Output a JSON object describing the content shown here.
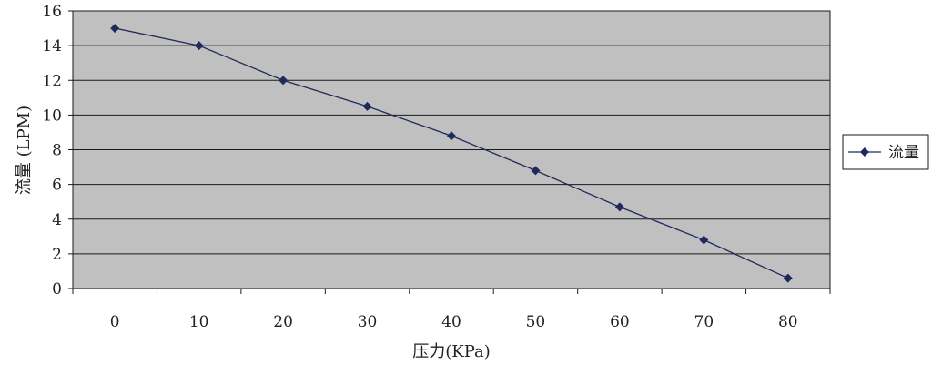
{
  "chart_data": {
    "type": "line",
    "title": "",
    "xlabel": "压力(KPa)",
    "ylabel": "流量 (LPM)",
    "categories": [
      "0",
      "10",
      "20",
      "30",
      "40",
      "50",
      "60",
      "70",
      "80"
    ],
    "x": [
      0,
      10,
      20,
      30,
      40,
      50,
      60,
      70,
      80
    ],
    "series": [
      {
        "name": "流量",
        "values": [
          15,
          14,
          12,
          10.5,
          8.8,
          6.8,
          4.7,
          2.8,
          0.6
        ]
      }
    ],
    "ylim": [
      0,
      16
    ],
    "yticks": [
      0,
      2,
      4,
      6,
      8,
      10,
      12,
      14,
      16
    ],
    "grid": true,
    "legend": "right",
    "colors": {
      "plot_bg": "#c0c0c0",
      "line": "#1f2a5c",
      "grid": "#1a1a1a"
    }
  }
}
